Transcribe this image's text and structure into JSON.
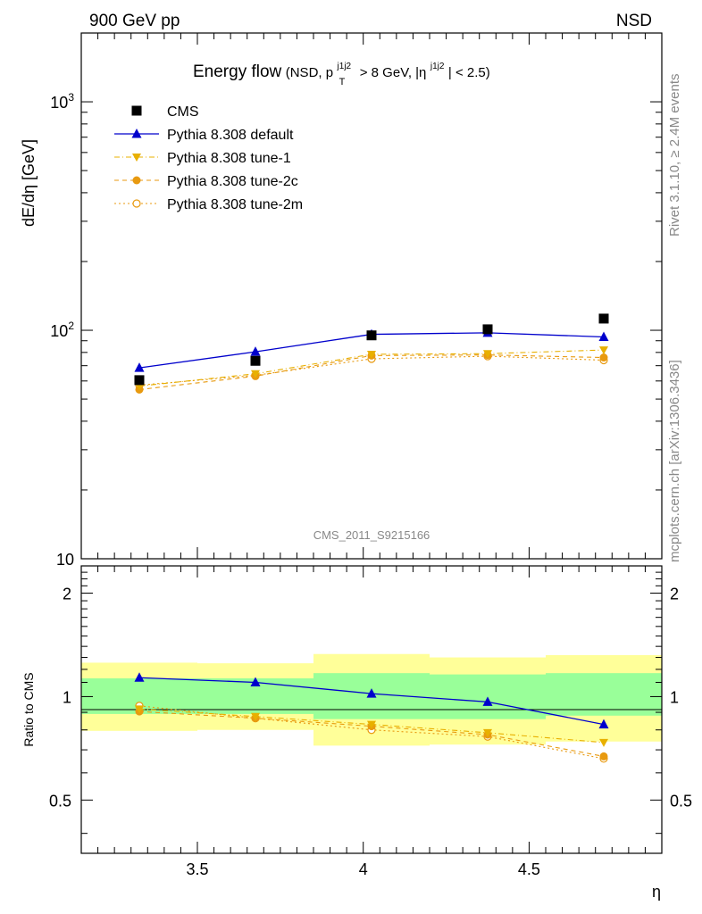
{
  "header": {
    "left": "900 GeV pp",
    "right": "NSD"
  },
  "side_labels": {
    "right_top": "Rivet 3.1.10, ≥ 2.4M events",
    "right_bottom": "mcplots.cern.ch [arXiv:1306.3436]"
  },
  "watermark": "CMS_2011_S9215166",
  "colors": {
    "cms": "#000000",
    "default": "#0000cc",
    "tune1": "#e8b000",
    "tune2c": "#e89a10",
    "tune2m": "#e89a10",
    "band_inner": "#99ff99",
    "band_outer": "#ffff99"
  },
  "chart_data": [
    {
      "type": "scatter",
      "title_main": "Energy flow",
      "title_sub_pre": "(NSD, p",
      "title_sub_sup1": "j1j2",
      "title_sub_sub1": "T",
      "title_sub_mid": " > 8 GeV, |η",
      "title_sub_sup2": "j1j2",
      "title_sub_post": "| < 2.5)",
      "ylabel": "dE/dη [GeV]",
      "yscale": "log",
      "ylim": [
        10,
        2000
      ],
      "xlim": [
        3.15,
        4.9
      ],
      "ytick_labels": [
        {
          "value": 10,
          "label": "10"
        },
        {
          "value": 100,
          "label": "10",
          "sup": "2"
        },
        {
          "value": 1000,
          "label": "10",
          "sup": "3"
        }
      ],
      "legend_position": "top-left",
      "x": [
        3.325,
        3.675,
        4.025,
        4.375,
        4.725
      ],
      "x_bins": [
        [
          3.15,
          3.5
        ],
        [
          3.5,
          3.85
        ],
        [
          3.85,
          4.2
        ],
        [
          4.2,
          4.55
        ],
        [
          4.55,
          4.9
        ]
      ],
      "series": [
        {
          "name": "CMS",
          "key": "cms",
          "values": [
            60.5,
            73.5,
            95.0,
            101.0,
            112.5
          ]
        },
        {
          "name": "Pythia 8.308 default",
          "key": "default",
          "values": [
            68.5,
            80.5,
            96.0,
            97.5,
            93.5
          ]
        },
        {
          "name": "Pythia 8.308 tune-1",
          "key": "tune1",
          "values": [
            57.0,
            64.5,
            78.5,
            79.0,
            82.0
          ]
        },
        {
          "name": "Pythia 8.308 tune-2c",
          "key": "tune2c",
          "values": [
            55.0,
            63.0,
            77.5,
            78.0,
            76.0
          ]
        },
        {
          "name": "Pythia 8.308 tune-2m",
          "key": "tune2m",
          "values": [
            57.5,
            63.5,
            75.0,
            77.0,
            74.0
          ]
        }
      ]
    },
    {
      "type": "scatter",
      "ylabel": "Ratio to CMS",
      "xlabel": "η",
      "yscale": "log",
      "ylim": [
        0.35,
        2.4
      ],
      "xlim": [
        3.15,
        4.9
      ],
      "xticks": [
        3.5,
        4,
        4.5
      ],
      "xtick_labels": [
        "3.5",
        "4",
        "4.5"
      ],
      "yticks": [
        0.5,
        1,
        2
      ],
      "ytick_labels": [
        "0.5",
        "1",
        "2"
      ],
      "bands": [
        {
          "x": [
            3.15,
            3.5
          ],
          "inner": [
            0.89,
            1.13
          ],
          "outer": [
            0.795,
            1.255
          ]
        },
        {
          "x": [
            3.5,
            3.85
          ],
          "inner": [
            0.89,
            1.13
          ],
          "outer": [
            0.8,
            1.25
          ]
        },
        {
          "x": [
            3.85,
            4.2
          ],
          "inner": [
            0.86,
            1.17
          ],
          "outer": [
            0.72,
            1.33
          ]
        },
        {
          "x": [
            4.2,
            4.55
          ],
          "inner": [
            0.86,
            1.16
          ],
          "outer": [
            0.725,
            1.3
          ]
        },
        {
          "x": [
            4.55,
            4.9
          ],
          "inner": [
            0.88,
            1.17
          ],
          "outer": [
            0.74,
            1.32
          ]
        }
      ],
      "x": [
        3.325,
        3.675,
        4.025,
        4.375,
        4.725
      ],
      "series": [
        {
          "name": "Pythia 8.308 default",
          "key": "default",
          "values": [
            1.135,
            1.1,
            1.02,
            0.965,
            0.83
          ]
        },
        {
          "name": "Pythia 8.308 tune-1",
          "key": "tune1",
          "values": [
            0.92,
            0.875,
            0.83,
            0.785,
            0.735
          ]
        },
        {
          "name": "Pythia 8.308 tune-2c",
          "key": "tune2c",
          "values": [
            0.905,
            0.865,
            0.82,
            0.775,
            0.67
          ]
        },
        {
          "name": "Pythia 8.308 tune-2m",
          "key": "tune2m",
          "values": [
            0.94,
            0.865,
            0.8,
            0.765,
            0.66
          ]
        }
      ]
    }
  ]
}
